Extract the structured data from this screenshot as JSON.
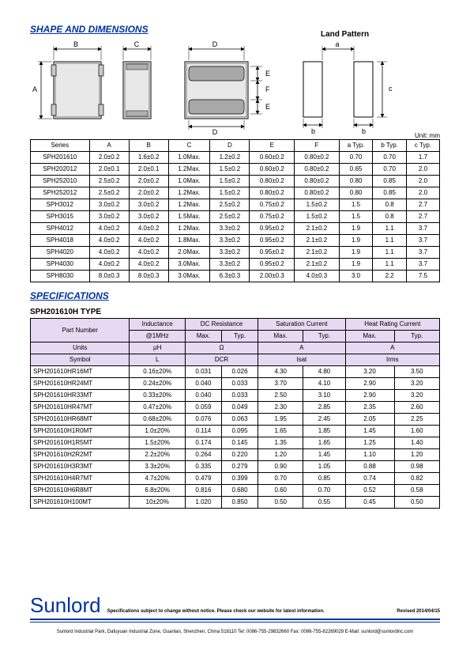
{
  "headings": {
    "shape": "SHAPE AND DIMENSIONS",
    "spec": "SPECIFICATIONS"
  },
  "diagram": {
    "land_pattern": "Land Pattern",
    "unit": "Unit: mm",
    "dim_labels": {
      "A": "A",
      "B": "B",
      "C": "C",
      "D": "D",
      "E": "E",
      "F": "F",
      "a": "a",
      "b": "b",
      "c": "c"
    }
  },
  "dim_table": {
    "headers": [
      "Series",
      "A",
      "B",
      "C",
      "D",
      "E",
      "F",
      "a Typ.",
      "b Typ.",
      "c Typ."
    ],
    "rows": [
      [
        "SPH201610",
        "2.0±0.2",
        "1.6±0.2",
        "1.0Max.",
        "1.2±0.2",
        "0.60±0.2",
        "0.80±0.2",
        "0.70",
        "0.70",
        "1.7"
      ],
      [
        "SPH202012",
        "2.0±0.1",
        "2.0±0.1",
        "1.2Max.",
        "1.5±0.2",
        "0.60±0.2",
        "0.80±0.2",
        "0.65",
        "0.70",
        "2.0"
      ],
      [
        "SPH252010",
        "2.5±0.2",
        "2.0±0.2",
        "1.0Max.",
        "1.5±0.2",
        "0.80±0.2",
        "0.80±0.2",
        "0.80",
        "0.85",
        "2.0"
      ],
      [
        "SPH252012",
        "2.5±0.2",
        "2.0±0.2",
        "1.2Max.",
        "1.5±0.2",
        "0.80±0.2",
        "0.80±0.2",
        "0.80",
        "0.85",
        "2.0"
      ],
      [
        "SPH3012",
        "3.0±0.2",
        "3.0±0.2",
        "1.2Max.",
        "2.5±0.2",
        "0.75±0.2",
        "1.5±0.2",
        "1.5",
        "0.8",
        "2.7"
      ],
      [
        "SPH3015",
        "3.0±0.2",
        "3.0±0.2",
        "1.5Max.",
        "2.5±0.2",
        "0.75±0.2",
        "1.5±0.2",
        "1.5",
        "0.8",
        "2.7"
      ],
      [
        "SPH4012",
        "4.0±0.2",
        "4.0±0.2",
        "1.2Max.",
        "3.3±0.2",
        "0.95±0.2",
        "2.1±0.2",
        "1.9",
        "1.1",
        "3.7"
      ],
      [
        "SPH4018",
        "4.0±0.2",
        "4.0±0.2",
        "1.8Max.",
        "3.3±0.2",
        "0.95±0.2",
        "2.1±0.2",
        "1.9",
        "1.1",
        "3.7"
      ],
      [
        "SPH4020",
        "4.0±0.2",
        "4.0±0.2",
        "2.0Max.",
        "3.3±0.2",
        "0.95±0.2",
        "2.1±0.2",
        "1.9",
        "1.1",
        "3.7"
      ],
      [
        "SPH4030",
        "4.0±0.2",
        "4.0±0.2",
        "3.0Max.",
        "3.3±0.2",
        "0.95±0.2",
        "2.1±0.2",
        "1.9",
        "1.1",
        "3.7"
      ],
      [
        "SPH8030",
        "8.0±0.3",
        "8.0±0.3",
        "3.0Max.",
        "6.3±0.3",
        "2.00±0.3",
        "4.0±0.3",
        "3.0",
        "2.2",
        "7.5"
      ]
    ]
  },
  "spec_sub": "SPH201610H TYPE",
  "spec_table": {
    "h1": [
      "Part Number",
      "Inductance",
      "DC Resistance",
      "Saturation Current",
      "Heat Rating Current"
    ],
    "h2": [
      "@1MHz",
      "Max.",
      "Typ.",
      "Max.",
      "Typ.",
      "Max.",
      "Typ."
    ],
    "h3": [
      "Units",
      "μH",
      "Ω",
      "A",
      "A"
    ],
    "h4": [
      "Symbol",
      "L",
      "DCR",
      "Isat",
      "Irms"
    ],
    "rows": [
      [
        "SPH201610HR16MT",
        "0.16±20%",
        "0.031",
        "0.026",
        "4.30",
        "4.80",
        "3.20",
        "3.50"
      ],
      [
        "SPH201610HR24MT",
        "0.24±20%",
        "0.040",
        "0.033",
        "3.70",
        "4.10",
        "2.90",
        "3.20"
      ],
      [
        "SPH201610HR33MT",
        "0.33±20%",
        "0.040",
        "0.033",
        "2.50",
        "3.10",
        "2.90",
        "3.20"
      ],
      [
        "SPH201610HR47MT",
        "0.47±20%",
        "0.059",
        "0.049",
        "2.30",
        "2.85",
        "2.35",
        "2.60"
      ],
      [
        "SPH201610HR68MT",
        "0.68±20%",
        "0.076",
        "0.063",
        "1.95",
        "2.45",
        "2.05",
        "2.25"
      ],
      [
        "SPH201610H1R0MT",
        "1.0±20%",
        "0.114",
        "0.095",
        "1.65",
        "1.85",
        "1.45",
        "1.60"
      ],
      [
        "SPH201610H1R5MT",
        "1.5±20%",
        "0.174",
        "0.145",
        "1.35",
        "1.65",
        "1.25",
        "1.40"
      ],
      [
        "SPH201610H2R2MT",
        "2.2±20%",
        "0.264",
        "0.220",
        "1.20",
        "1.45",
        "1.10",
        "1.20"
      ],
      [
        "SPH201610H3R3MT",
        "3.3±20%",
        "0.335",
        "0.279",
        "0.90",
        "1.05",
        "0.88",
        "0.98"
      ],
      [
        "SPH201610H4R7MT",
        "4.7±20%",
        "0.479",
        "0.399",
        "0.70",
        "0.85",
        "0.74",
        "0.82"
      ],
      [
        "SPH201610H6R8MT",
        "6.8±20%",
        "0.816",
        "0.680",
        "0.60",
        "0.70",
        "0.52",
        "0.58"
      ],
      [
        "SPH201610H100MT",
        "10±20%",
        "1.020",
        "0.850",
        "0.50",
        "0.55",
        "0.45",
        "0.50"
      ]
    ]
  },
  "footer": {
    "brand": "Sunlord",
    "notice": "Specifications subject to change without notice. Please check our website for latest information.",
    "revised": "Revised 2014/04/15",
    "address": "Sunlord Industrial Park, Dafuyuan Industrial Zone, Guanlan, Shenzhen, China 518110 Tel: 0086-755-29832660 Fax: 0086-755-82269029 E-Mail: sunlord@sunlordinc.com"
  },
  "colors": {
    "blue": "#0033a0",
    "shade": "#c0c0c0",
    "darkshade": "#a0a0a0",
    "spechdr": "#e6d9f2"
  }
}
